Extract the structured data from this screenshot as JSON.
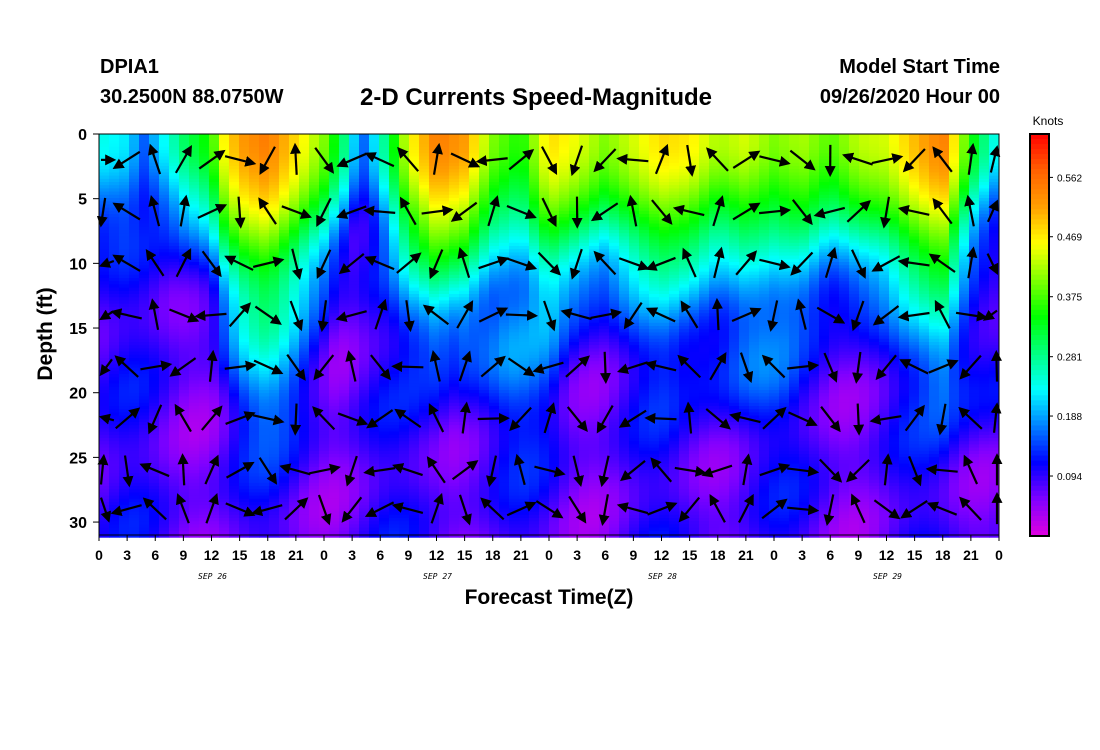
{
  "header": {
    "station": "DPIA1",
    "coordinates": "30.2500N 88.0750W",
    "title": "2-D Currents Speed-Magnitude",
    "model_start_label": "Model Start Time",
    "model_start_value": "09/26/2020 Hour 00"
  },
  "chart_data": {
    "type": "heatmap",
    "title": "2-D Currents Speed-Magnitude",
    "xlabel": "Forecast Time(Z)",
    "ylabel": "Depth (ft)",
    "x_ticks": [
      "0",
      "3",
      "6",
      "9",
      "12",
      "15",
      "18",
      "21",
      "0",
      "3",
      "6",
      "9",
      "12",
      "15",
      "18",
      "21",
      "0",
      "3",
      "6",
      "9",
      "12",
      "15",
      "18",
      "21",
      "0",
      "3",
      "6",
      "9",
      "12",
      "15",
      "18",
      "21",
      "0"
    ],
    "x_range_hours": [
      0,
      96
    ],
    "date_labels": [
      {
        "label": "SEP 26",
        "hour": 12
      },
      {
        "label": "SEP 27",
        "hour": 36
      },
      {
        "label": "SEP 28",
        "hour": 60
      },
      {
        "label": "SEP 29",
        "hour": 84
      }
    ],
    "y_ticks": [
      0,
      5,
      10,
      15,
      20,
      25,
      30
    ],
    "y_range_ft": [
      0,
      31
    ],
    "y_inverted": true,
    "colorbar": {
      "unit_label": "Knots",
      "ticks": [
        0.562,
        0.469,
        0.375,
        0.281,
        0.188,
        0.094
      ],
      "range": [
        0.0,
        0.63
      ],
      "colors": [
        "#e000e0",
        "#8000ff",
        "#0000ff",
        "#0080ff",
        "#00ffff",
        "#00ff80",
        "#00ff00",
        "#80ff00",
        "#ffff00",
        "#ffa000",
        "#ff6000",
        "#ff0000"
      ]
    },
    "speed_description": "Surface speeds peak near 0.5-0.6 knots in recurring pulses; speeds fall below 0.15 knots below about 12 ft.",
    "surface_speed_by_hour": [
      [
        0,
        0.24
      ],
      [
        3,
        0.22
      ],
      [
        5,
        0.15
      ],
      [
        6,
        0.2
      ],
      [
        9,
        0.3
      ],
      [
        12,
        0.36
      ],
      [
        13,
        0.45
      ],
      [
        15,
        0.52
      ],
      [
        18,
        0.55
      ],
      [
        21,
        0.48
      ],
      [
        24,
        0.4
      ],
      [
        26,
        0.3
      ],
      [
        28,
        0.15
      ],
      [
        30,
        0.25
      ],
      [
        33,
        0.45
      ],
      [
        36,
        0.55
      ],
      [
        39,
        0.52
      ],
      [
        42,
        0.4
      ],
      [
        45,
        0.35
      ],
      [
        48,
        0.48
      ],
      [
        51,
        0.45
      ],
      [
        54,
        0.4
      ],
      [
        57,
        0.44
      ],
      [
        60,
        0.48
      ],
      [
        63,
        0.47
      ],
      [
        66,
        0.42
      ],
      [
        69,
        0.44
      ],
      [
        72,
        0.4
      ],
      [
        75,
        0.42
      ],
      [
        78,
        0.38
      ],
      [
        81,
        0.43
      ],
      [
        84,
        0.44
      ],
      [
        87,
        0.5
      ],
      [
        90,
        0.55
      ],
      [
        93,
        0.35
      ],
      [
        96,
        0.22
      ]
    ],
    "vector_grid": {
      "hours_start": 0,
      "hours_step": 3,
      "count_x": 33,
      "depths": [
        2,
        6,
        10,
        14,
        18,
        22,
        26,
        29
      ],
      "description": "Current direction arrows on a regular grid of forecast hours and depths; direction alternates with the tidal cycle."
    }
  }
}
